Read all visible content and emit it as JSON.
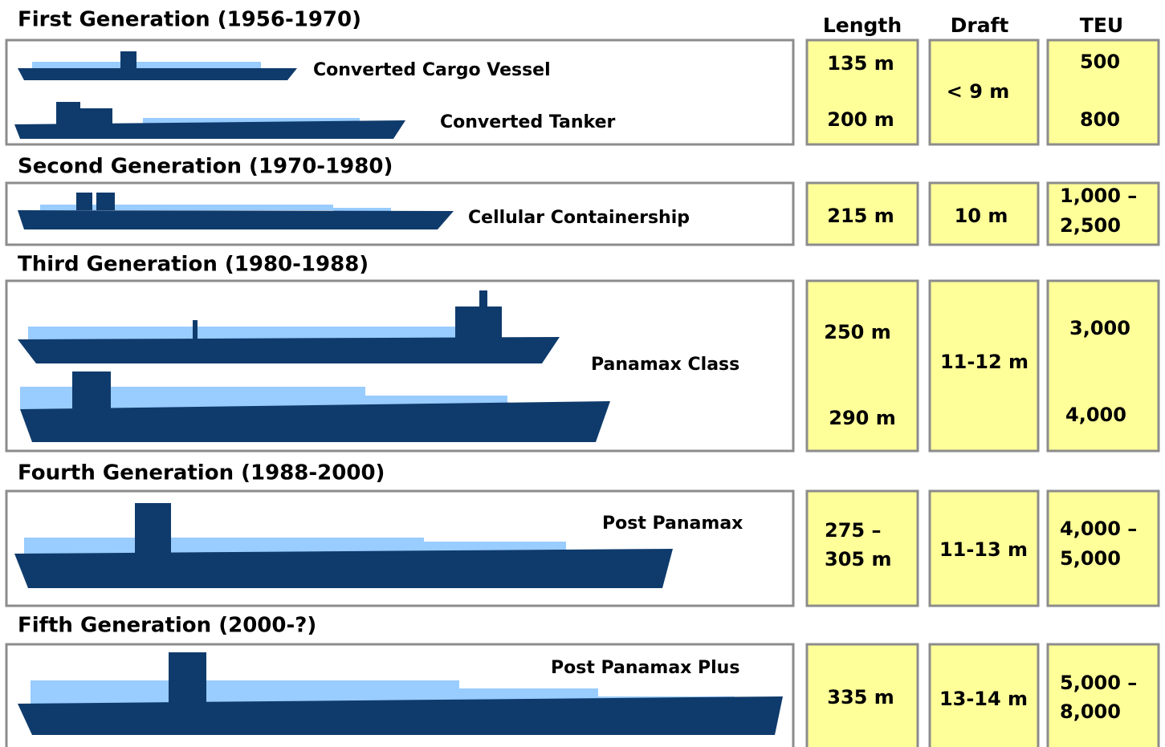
{
  "headers": {
    "length": "Length",
    "draft": "Draft",
    "teu": "TEU"
  },
  "generations": [
    {
      "title": "First Generation (1956-1970)",
      "ships": [
        "Converted Cargo Vessel",
        "Converted Tanker"
      ],
      "length": [
        "135 m",
        "200 m"
      ],
      "draft": [
        "< 9 m"
      ],
      "teu": [
        "500",
        "800"
      ]
    },
    {
      "title": "Second Generation (1970-1980)",
      "ships": [
        "Cellular Containership"
      ],
      "length": [
        "215 m"
      ],
      "draft": [
        "10 m"
      ],
      "teu": [
        "1,000 –",
        "2,500"
      ]
    },
    {
      "title": "Third Generation (1980-1988)",
      "ships": [
        "Panamax Class"
      ],
      "length": [
        "250 m",
        "290 m"
      ],
      "draft": [
        "11-12 m"
      ],
      "teu": [
        "3,000",
        "4,000"
      ]
    },
    {
      "title": "Fourth Generation (1988-2000)",
      "ships": [
        "Post Panamax"
      ],
      "length": [
        "275 –",
        "305 m"
      ],
      "draft": [
        "11-13 m"
      ],
      "teu": [
        "4,000 –",
        "5,000"
      ]
    },
    {
      "title": "Fifth Generation (2000-?)",
      "ships": [
        "Post Panamax Plus"
      ],
      "length": [
        "335 m"
      ],
      "draft": [
        "13-14 m"
      ],
      "teu": [
        "5,000 –",
        "8,000"
      ]
    }
  ]
}
